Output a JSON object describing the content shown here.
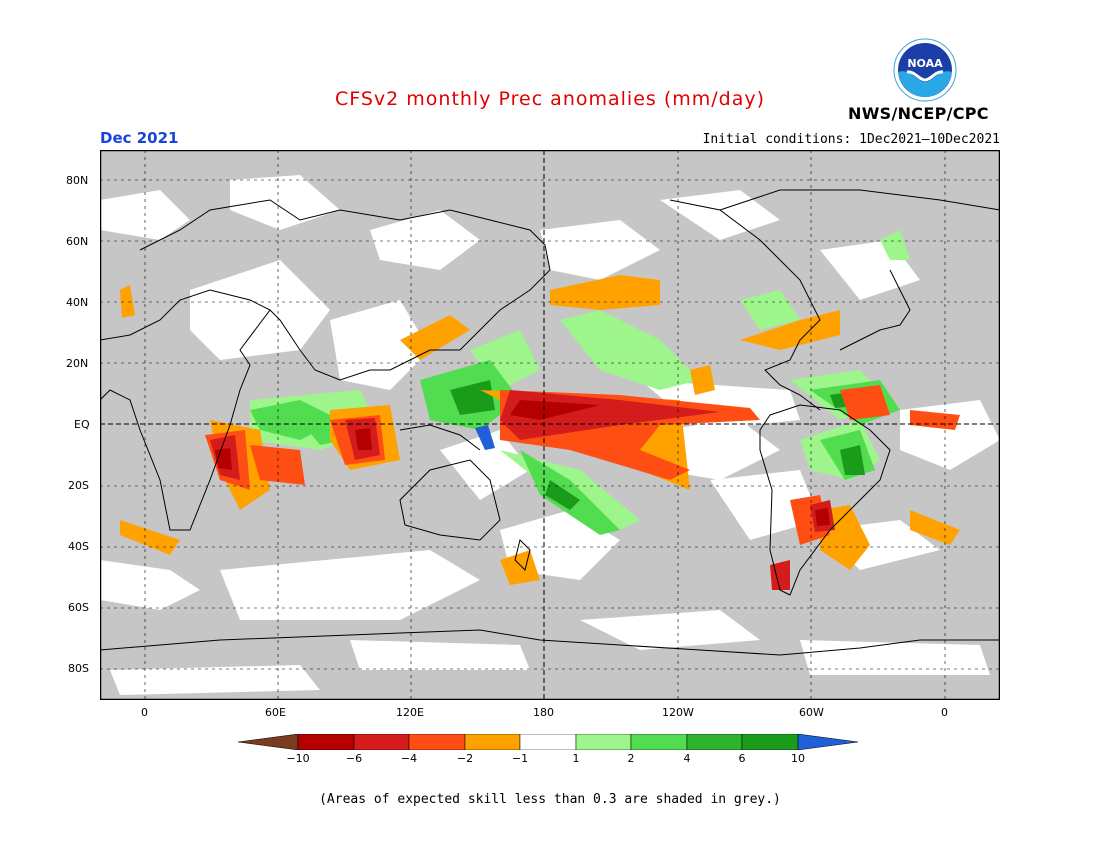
{
  "header": {
    "title": "CFSv2 monthly Prec anomalies (mm/day)",
    "agency": "NWS/NCEP/CPC",
    "logo_text": "NOAA",
    "month": "Dec 2021",
    "initial_conditions": "Initial conditions: 1Dec2021—10Dec2021"
  },
  "axes": {
    "y_ticks": [
      "80N",
      "60N",
      "40N",
      "20N",
      "EQ",
      "20S",
      "40S",
      "60S",
      "80S"
    ],
    "x_ticks": [
      "0",
      "60E",
      "120E",
      "180",
      "120W",
      "60W",
      "0"
    ]
  },
  "colorbar": {
    "labels": [
      "−10",
      "−6",
      "−4",
      "−2",
      "−1",
      "1",
      "2",
      "4",
      "6",
      "10"
    ],
    "colors": [
      "#7a3b1f",
      "#b40000",
      "#d41c1c",
      "#ff4e14",
      "#ffa200",
      "#ffffff",
      "#9ef58c",
      "#52dc4f",
      "#2eb32e",
      "#1a9b1a",
      "#1f5fd8"
    ]
  },
  "footnote": "(Areas of expected skill less than 0.3 are shaded in grey.)",
  "colors": {
    "grey": "#c6c6c6",
    "white": "#ffffff",
    "orange": "#ffa200",
    "red_orange": "#ff4e14",
    "red": "#d41c1c",
    "dark_red": "#b40000",
    "light_green": "#9ef58c",
    "green": "#52dc4f",
    "dark_green": "#1a9b1a",
    "blue": "#1f5fd8",
    "title_red": "#e00000",
    "month_blue": "#1a44d8"
  }
}
